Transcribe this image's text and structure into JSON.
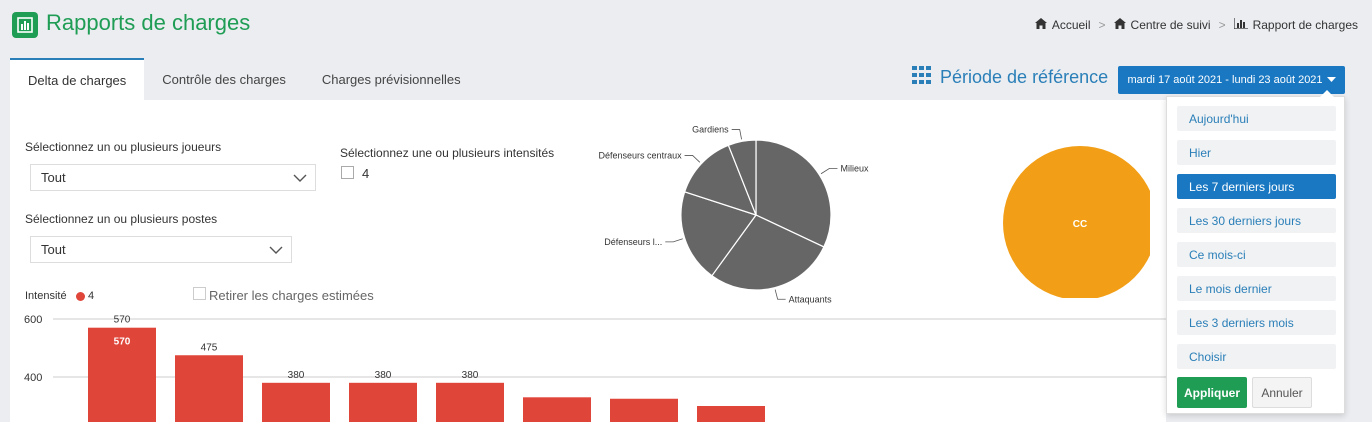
{
  "header": {
    "title": "Rapports de charges",
    "breadcrumb": [
      {
        "label": "Accueil",
        "icon": "home-icon"
      },
      {
        "label": "Centre de suivi",
        "icon": "home-icon"
      },
      {
        "label": "Rapport de charges",
        "icon": "bar-chart-icon"
      }
    ]
  },
  "tabs": [
    {
      "label": "Delta de charges",
      "active": true
    },
    {
      "label": "Contrôle des charges",
      "active": false
    },
    {
      "label": "Charges prévisionnelles",
      "active": false
    }
  ],
  "periode": {
    "label": "Période de référence",
    "date_range": "mardi 17 août 2021 - lundi 23 août 2021"
  },
  "filters": {
    "joueurs_label": "Sélectionnez un ou plusieurs joueurs",
    "joueurs_value": "Tout",
    "postes_label": "Sélectionnez un ou plusieurs postes",
    "postes_value": "Tout",
    "intensites_label": "Sélectionnez une ou plusieurs intensités",
    "intensite_option": "4"
  },
  "legend": {
    "label": "Intensité",
    "value": "4",
    "retirer_label": "Retirer les charges estimées"
  },
  "dropdown": {
    "options": [
      {
        "label": "Aujourd'hui",
        "active": false
      },
      {
        "label": "Hier",
        "active": false
      },
      {
        "label": "Les 7 derniers jours",
        "active": true
      },
      {
        "label": "Les 30 derniers jours",
        "active": false
      },
      {
        "label": "Ce mois-ci",
        "active": false
      },
      {
        "label": "Le mois dernier",
        "active": false
      },
      {
        "label": "Les 3 derniers mois",
        "active": false
      },
      {
        "label": "Choisir",
        "active": false
      }
    ],
    "apply_label": "Appliquer",
    "cancel_label": "Annuler"
  },
  "colors": {
    "brand_green": "#1f9d55",
    "accent_blue": "#1a78c2",
    "bar_red": "#e0453a",
    "pie_gray": "#666666",
    "pie_orange": "#f29f17"
  },
  "chart_data": [
    {
      "type": "bar",
      "yticks": [
        400,
        600
      ],
      "ylim": [
        300,
        600
      ],
      "categories": [
        "",
        "",
        "",
        "",
        "",
        "",
        "",
        ""
      ],
      "values": [
        570,
        475,
        380,
        380,
        380,
        330,
        325,
        300
      ],
      "data_labels": [
        "570",
        "475",
        "380",
        "380",
        "380",
        "",
        "",
        ""
      ]
    },
    {
      "type": "pie",
      "labels": [
        "Milieux",
        "Attaquants",
        "Défenseurs l...",
        "Défenseurs centraux",
        "Gardiens"
      ],
      "values": [
        32,
        28,
        20,
        14,
        6
      ]
    },
    {
      "type": "pie",
      "labels": [
        "CC"
      ],
      "values": [
        100
      ]
    }
  ]
}
